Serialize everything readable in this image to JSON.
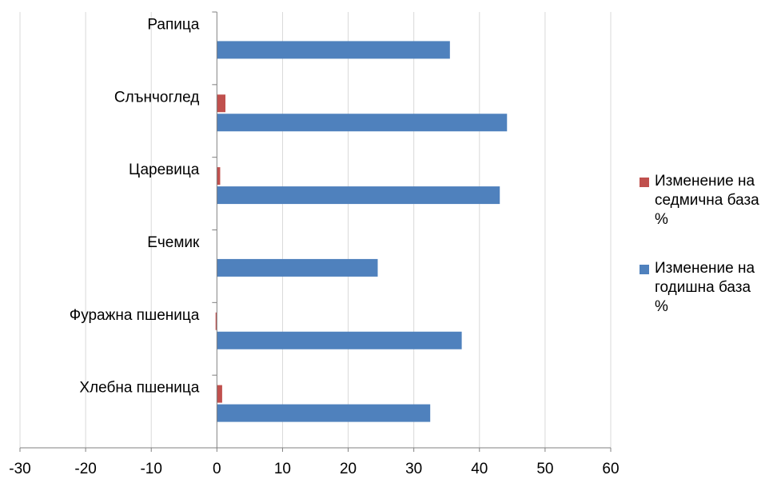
{
  "chart_data": {
    "type": "bar",
    "orientation": "horizontal",
    "title": "",
    "xlabel": "",
    "ylabel": "",
    "categories": [
      "Рапица",
      "Слънчоглед",
      "Царевица",
      "Ечемик",
      "Фуражна пшеница",
      "Хлебна пшеница"
    ],
    "series": [
      {
        "name": "Изменение на седмична база %",
        "color": "#c0504d",
        "values": [
          0,
          1.3,
          0.5,
          0,
          -0.2,
          0.8
        ]
      },
      {
        "name": "Изменение на годишна база %",
        "color": "#4f81bd",
        "values": [
          35.5,
          44.2,
          43.1,
          24.5,
          37.3,
          32.5
        ]
      }
    ],
    "xlim": [
      -30,
      60
    ],
    "xticks": [
      "-30",
      "-20",
      "-10",
      "0",
      "10",
      "20",
      "30",
      "40",
      "50",
      "60"
    ],
    "grid": true,
    "legend_position": "right"
  },
  "legend": {
    "weekly_line1": "Изменение на",
    "weekly_line2": "седмична база",
    "weekly_line3": "%",
    "yearly_line1": "Изменение на",
    "yearly_line2": "годишна база",
    "yearly_line3": "%"
  }
}
